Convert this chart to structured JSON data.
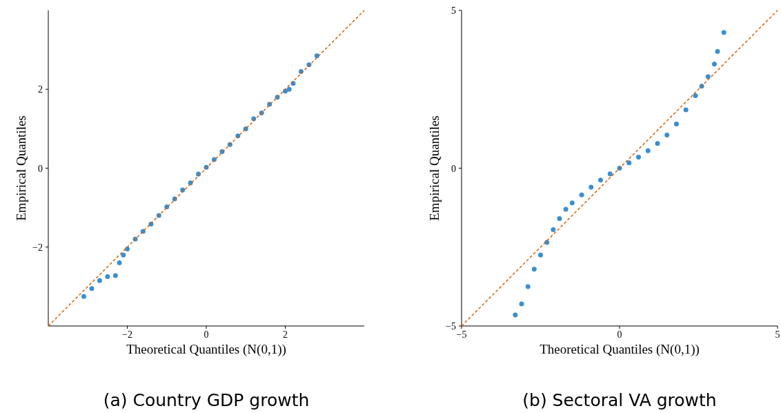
{
  "chart_data": [
    {
      "type": "scatter",
      "title": "(a) Country GDP growth",
      "xlabel": "Theoretical Quantiles (N(0,1))",
      "ylabel": "Empirical Quantiles",
      "xlim": [
        -4,
        4
      ],
      "ylim": [
        -4,
        4
      ],
      "xticks": [
        {
          "value": -2,
          "label": "−2"
        },
        0,
        2
      ],
      "yticks": [
        {
          "value": -2,
          "label": "−2"
        },
        0,
        2
      ],
      "series": [
        {
          "type": "scatter",
          "marker": "circle",
          "color": "#3a8fd0",
          "x": [
            -3.1,
            -2.9,
            -2.7,
            -2.5,
            -2.3,
            -2.2,
            -2.1,
            -2.0,
            -1.8,
            -1.6,
            -1.4,
            -1.2,
            -1.0,
            -0.8,
            -0.6,
            -0.4,
            -0.2,
            0,
            0.2,
            0.4,
            0.6,
            0.8,
            1.0,
            1.2,
            1.4,
            1.6,
            1.8,
            2.0,
            2.1,
            2.2,
            2.4,
            2.6,
            2.8
          ],
          "values": [
            -3.25,
            -3.05,
            -2.85,
            -2.75,
            -2.72,
            -2.4,
            -2.2,
            -2.05,
            -1.8,
            -1.6,
            -1.42,
            -1.2,
            -0.98,
            -0.78,
            -0.55,
            -0.37,
            -0.15,
            0.02,
            0.22,
            0.42,
            0.6,
            0.82,
            1.0,
            1.25,
            1.4,
            1.62,
            1.8,
            1.95,
            2.0,
            2.15,
            2.45,
            2.62,
            2.85
          ]
        },
        {
          "type": "line",
          "color": "#d95f02",
          "line_style": "dashed",
          "x": [
            -4,
            4
          ],
          "values": [
            -4,
            4
          ]
        }
      ]
    },
    {
      "type": "scatter",
      "title": "(b) Sectoral VA growth",
      "xlabel": "Theoretical Quantiles (N(0,1))",
      "ylabel": "Empirical Quantiles",
      "xlim": [
        -5,
        5
      ],
      "ylim": [
        -5,
        5
      ],
      "xticks": [
        {
          "value": -5,
          "label": "−5"
        },
        0,
        5
      ],
      "yticks": [
        {
          "value": -5,
          "label": "−5"
        },
        0,
        5
      ],
      "series": [
        {
          "type": "scatter",
          "marker": "circle",
          "color": "#3a8fd0",
          "x": [
            -3.3,
            -3.1,
            -2.9,
            -2.7,
            -2.5,
            -2.3,
            -2.1,
            -1.9,
            -1.7,
            -1.5,
            -1.2,
            -0.9,
            -0.6,
            -0.3,
            0,
            0.3,
            0.6,
            0.9,
            1.2,
            1.5,
            1.8,
            2.1,
            2.4,
            2.6,
            2.8,
            3.0,
            3.1,
            3.3
          ],
          "values": [
            -4.65,
            -4.3,
            -3.75,
            -3.2,
            -2.75,
            -2.35,
            -1.95,
            -1.6,
            -1.3,
            -1.1,
            -0.85,
            -0.6,
            -0.38,
            -0.18,
            0,
            0.17,
            0.35,
            0.55,
            0.78,
            1.05,
            1.4,
            1.85,
            2.3,
            2.6,
            2.9,
            3.3,
            3.7,
            4.3
          ]
        },
        {
          "type": "line",
          "color": "#d95f02",
          "line_style": "dashed",
          "x": [
            -5,
            5
          ],
          "values": [
            -5,
            5
          ]
        }
      ]
    }
  ]
}
